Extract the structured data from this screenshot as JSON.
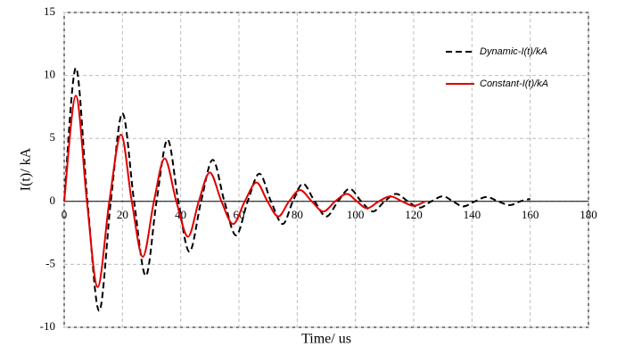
{
  "chart_data": {
    "type": "line",
    "xlabel": "Time/ us",
    "ylabel": "I(t)/ kA",
    "xlim": [
      0,
      180
    ],
    "xticks": [
      0,
      20,
      40,
      60,
      80,
      100,
      120,
      140,
      160,
      180
    ],
    "ylim": [
      -10,
      15
    ],
    "yticks": [
      -10,
      -5,
      0,
      5,
      10,
      15
    ],
    "grid": true,
    "legend": "upper right",
    "series": [
      {
        "name": "Dynamic-I(t)/kA",
        "color": "#000000",
        "linestyle": "dashed",
        "x": [
          0,
          4,
          8,
          12,
          16,
          20,
          24,
          28,
          31.7,
          35.5,
          39.2,
          43,
          47,
          51,
          55,
          59,
          63,
          67,
          71,
          75,
          78.5,
          82,
          86,
          90,
          94,
          98,
          102,
          106,
          110,
          114,
          118,
          122,
          126,
          130,
          133.5,
          137,
          141,
          145,
          149,
          153,
          156.5,
          160
        ],
        "values": [
          0,
          10.6,
          0,
          -8.7,
          0,
          7.0,
          0,
          -5.9,
          0,
          4.9,
          0,
          -4.0,
          0,
          3.3,
          0,
          -2.7,
          0,
          2.2,
          0,
          -1.8,
          0,
          1.4,
          0,
          -1.2,
          0,
          1.0,
          0,
          -0.8,
          0,
          0.6,
          0,
          -0.5,
          0,
          0.4,
          0,
          -0.4,
          0,
          0.35,
          0,
          -0.3,
          0,
          0.2
        ]
      },
      {
        "name": "Constant-I(t)/kA",
        "color": "#e00000",
        "linestyle": "solid",
        "x": [
          0,
          4,
          7.8,
          11.5,
          15.5,
          19.5,
          23.2,
          27,
          30.8,
          34.5,
          38.5,
          42.5,
          46.2,
          50,
          54,
          58,
          62,
          66,
          69.8,
          73.5,
          77.2,
          81,
          85,
          89,
          93,
          97,
          100.5,
          104,
          108,
          112,
          116,
          120,
          124
        ],
        "values": [
          0,
          8.4,
          0,
          -6.8,
          0,
          5.3,
          0,
          -4.4,
          0,
          3.4,
          0,
          -2.8,
          0,
          2.3,
          0,
          -1.8,
          0,
          1.5,
          0,
          -1.2,
          0,
          0.9,
          0,
          -0.8,
          0,
          0.6,
          0,
          -0.55,
          0,
          0.4,
          0,
          -0.35,
          0
        ]
      }
    ]
  }
}
